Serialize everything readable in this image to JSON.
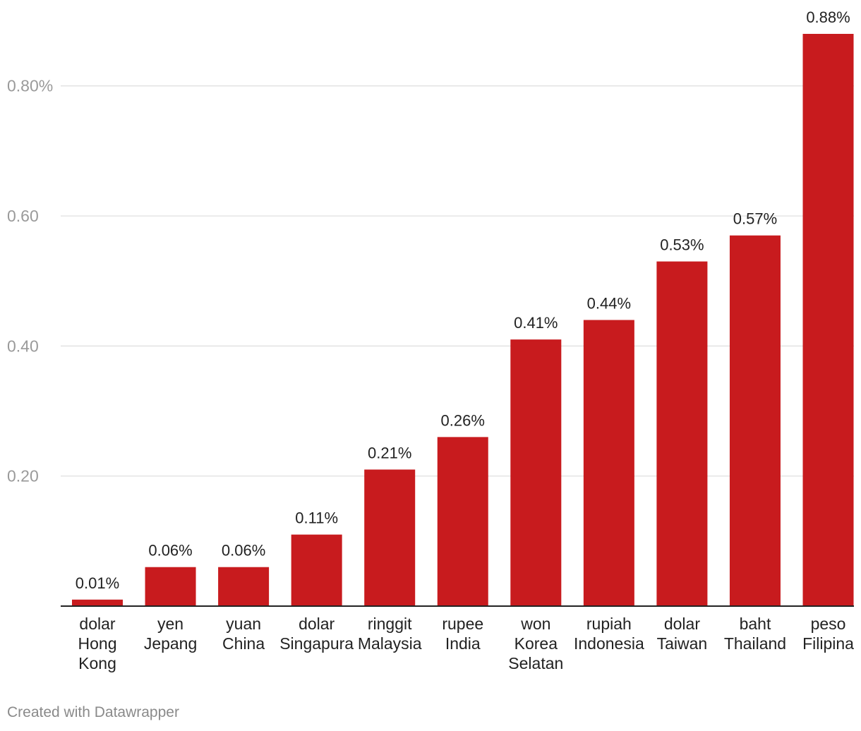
{
  "chart_data": {
    "type": "bar",
    "categories": [
      [
        "dolar",
        "Hong",
        "Kong"
      ],
      [
        "yen",
        "Jepang"
      ],
      [
        "yuan",
        "China"
      ],
      [
        "dolar",
        "Singapura"
      ],
      [
        "ringgit",
        "Malaysia"
      ],
      [
        "rupee",
        "India"
      ],
      [
        "won",
        "Korea",
        "Selatan"
      ],
      [
        "rupiah",
        "Indonesia"
      ],
      [
        "dolar",
        "Taiwan"
      ],
      [
        "baht",
        "Thailand"
      ],
      [
        "peso",
        "Filipina"
      ]
    ],
    "values": [
      0.01,
      0.06,
      0.06,
      0.11,
      0.21,
      0.26,
      0.41,
      0.44,
      0.53,
      0.57,
      0.88
    ],
    "value_labels": [
      "0.01%",
      "0.06%",
      "0.06%",
      "0.11%",
      "0.21%",
      "0.26%",
      "0.41%",
      "0.44%",
      "0.53%",
      "0.57%",
      "0.88%"
    ],
    "y_ticks": [
      {
        "value": 0.2,
        "label": "0.20"
      },
      {
        "value": 0.4,
        "label": "0.40"
      },
      {
        "value": 0.6,
        "label": "0.60"
      },
      {
        "value": 0.8,
        "label": "0.80%"
      }
    ],
    "ylim": [
      0,
      0.88
    ],
    "grid": true,
    "bar_color": "#c81b1e"
  },
  "footer": {
    "credit": "Created with Datawrapper"
  }
}
